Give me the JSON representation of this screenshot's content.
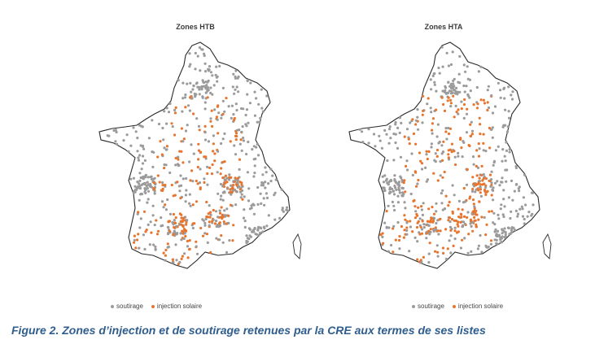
{
  "colors": {
    "soutirage": "#9b9b9b",
    "injection": "#e8752d",
    "outline": "#2a2a2a",
    "caption": "#2f5e8e"
  },
  "panels": [
    {
      "title": "Zones HTB",
      "legend": {
        "soutirage": "soutirage",
        "injection": "injection solaire"
      }
    },
    {
      "title": "Zones HTA",
      "legend": {
        "soutirage": "soutirage",
        "injection": "injection solaire"
      }
    }
  ],
  "caption": "Figure 2. Zones d’injection et de soutirage retenues par la CRE aux termes de ses listes"
}
